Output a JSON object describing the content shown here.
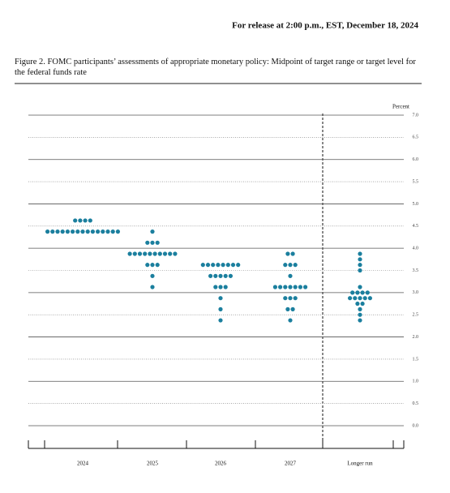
{
  "header": "For release at 2:00 p.m., EST, December 18, 2024",
  "chart_data": {
    "type": "dot",
    "title": "Figure 2.  FOMC participants’ assessments of appropriate monetary policy: Midpoint of target range or target level for the federal funds rate",
    "y_label": "Percent",
    "color": "#1b7f9e",
    "categories": [
      "2024",
      "2025",
      "2026",
      "2027",
      "Longer run"
    ],
    "series": [
      {
        "points": [
          {
            "y": 4.625,
            "count": 4
          },
          {
            "y": 4.375,
            "count": 15
          }
        ]
      },
      {
        "points": [
          {
            "y": 4.375,
            "count": 1
          },
          {
            "y": 4.125,
            "count": 3
          },
          {
            "y": 3.875,
            "count": 10
          },
          {
            "y": 3.625,
            "count": 3
          },
          {
            "y": 3.375,
            "count": 1
          },
          {
            "y": 3.125,
            "count": 1
          }
        ]
      },
      {
        "points": [
          {
            "y": 3.625,
            "count": 8
          },
          {
            "y": 3.375,
            "count": 5
          },
          {
            "y": 3.125,
            "count": 3
          },
          {
            "y": 2.875,
            "count": 1
          },
          {
            "y": 2.625,
            "count": 1
          },
          {
            "y": 2.375,
            "count": 1
          }
        ]
      },
      {
        "points": [
          {
            "y": 3.875,
            "count": 2
          },
          {
            "y": 3.625,
            "count": 3
          },
          {
            "y": 3.375,
            "count": 1
          },
          {
            "y": 3.125,
            "count": 7
          },
          {
            "y": 2.875,
            "count": 3
          },
          {
            "y": 2.625,
            "count": 2
          },
          {
            "y": 2.375,
            "count": 1
          }
        ]
      },
      {
        "points": [
          {
            "y": 3.875,
            "count": 1
          },
          {
            "y": 3.75,
            "count": 1
          },
          {
            "y": 3.625,
            "count": 1
          },
          {
            "y": 3.5,
            "count": 1
          },
          {
            "y": 3.125,
            "count": 1
          },
          {
            "y": 3.0,
            "count": 4
          },
          {
            "y": 2.875,
            "count": 5
          },
          {
            "y": 2.75,
            "count": 2
          },
          {
            "y": 2.625,
            "count": 1
          },
          {
            "y": 2.5,
            "count": 1
          },
          {
            "y": 2.375,
            "count": 1
          }
        ]
      }
    ],
    "ylim": [
      0,
      7
    ],
    "yticks": [
      {
        "value": 0,
        "label": "0.0"
      },
      0.5,
      {
        "value": 1,
        "label": "1.0"
      },
      1.5,
      {
        "value": 2,
        "label": "2.0"
      },
      2.5,
      {
        "value": 3,
        "label": "3.0"
      },
      3.5,
      {
        "value": 4,
        "label": "4.0"
      },
      4.5,
      {
        "value": 5,
        "label": "5.0"
      },
      5.5,
      {
        "value": 6,
        "label": "6.0"
      },
      6.5,
      {
        "value": 7,
        "label": "7.0"
      }
    ],
    "grid": true
  }
}
